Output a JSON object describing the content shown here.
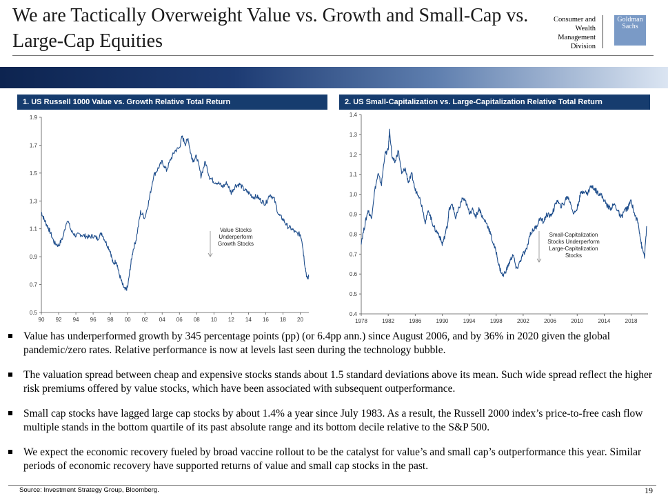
{
  "header": {
    "title": "We are Tactically Overweight Value vs. Growth and Small-Cap vs. Large-Cap Equities",
    "division": "Consumer and Wealth Management Division",
    "logo": "Goldman Sachs"
  },
  "charts": {
    "chart1_title": "1. US Russell 1000 Value vs. Growth Relative Total Return",
    "chart2_title": "2. US Small-Capitalization vs. Large-Capitalization Relative Total Return"
  },
  "chart_data": [
    {
      "type": "line",
      "title": "1. US Russell 1000 Value vs. Growth Relative Total Return",
      "x_tick_labels": [
        "90",
        "92",
        "94",
        "96",
        "98",
        "00",
        "02",
        "04",
        "06",
        "08",
        "10",
        "12",
        "14",
        "16",
        "18",
        "20"
      ],
      "y_ticks": [
        0.5,
        0.7,
        0.9,
        1.1,
        1.3,
        1.5,
        1.7,
        1.9
      ],
      "ylim": [
        0.5,
        1.9
      ],
      "xlim": [
        1990,
        2021
      ],
      "annotation": "Value Stocks Underperform Growth Stocks",
      "annotation_lines": [
        "Value Stocks",
        "Underperform",
        "Growth Stocks"
      ],
      "line_color": "#1f4e8c",
      "series": [
        {
          "x": [
            1990,
            1990.3,
            1990.7,
            1991,
            1991.5,
            1992,
            1992.5,
            1993,
            1993.5,
            1994,
            1994.5,
            1995,
            1995.5,
            1996,
            1996.5,
            1997,
            1997.5,
            1998,
            1998.3,
            1998.7,
            1999,
            1999.4,
            1999.7,
            2000,
            2000.3,
            2000.6,
            2001,
            2001.5,
            2002,
            2002.5,
            2003,
            2003.5,
            2004,
            2004.5,
            2005,
            2005.5,
            2006,
            2006.3,
            2006.7,
            2007,
            2007.3,
            2007.6,
            2008,
            2008.5,
            2009,
            2009.5,
            2010,
            2010.5,
            2011,
            2011.5,
            2012,
            2012.5,
            2013,
            2013.5,
            2014,
            2014.5,
            2015,
            2015.5,
            2016,
            2016.5,
            2017,
            2017.5,
            2018,
            2018.5,
            2019,
            2019.5,
            2020,
            2020.2,
            2020.5,
            2020.8,
            2021
          ],
          "y": [
            1.22,
            1.17,
            1.12,
            1.08,
            1.0,
            0.98,
            1.04,
            1.17,
            1.08,
            1.05,
            1.06,
            1.05,
            1.04,
            1.05,
            1.03,
            1.07,
            1.0,
            0.94,
            0.85,
            0.87,
            0.78,
            0.7,
            0.66,
            0.68,
            0.82,
            0.94,
            1.03,
            1.22,
            1.18,
            1.31,
            1.48,
            1.53,
            1.58,
            1.52,
            1.6,
            1.66,
            1.68,
            1.76,
            1.71,
            1.75,
            1.64,
            1.59,
            1.62,
            1.48,
            1.58,
            1.47,
            1.44,
            1.43,
            1.4,
            1.43,
            1.36,
            1.41,
            1.42,
            1.38,
            1.36,
            1.33,
            1.33,
            1.3,
            1.28,
            1.35,
            1.31,
            1.2,
            1.17,
            1.12,
            1.1,
            1.07,
            1.06,
            1.02,
            0.86,
            0.74,
            0.76
          ]
        }
      ]
    },
    {
      "type": "line",
      "title": "2. US Small-Capitalization vs. Large-Capitalization Relative Total Return",
      "x_tick_labels": [
        "1978",
        "1982",
        "1986",
        "1990",
        "1994",
        "1998",
        "2002",
        "2006",
        "2010",
        "2014",
        "2018"
      ],
      "y_ticks": [
        0.4,
        0.5,
        0.6,
        0.7,
        0.8,
        0.9,
        1.0,
        1.1,
        1.2,
        1.3,
        1.4
      ],
      "ylim": [
        0.4,
        1.4
      ],
      "xlim": [
        1978,
        2020.5
      ],
      "annotation": "Small-Capitalization Stocks Underperform Large-Capitalization Stocks",
      "annotation_lines": [
        "Small-Capitalization",
        "Stocks Underperform",
        "Large-Capitalization",
        "Stocks"
      ],
      "line_color": "#1f4e8c",
      "series": [
        {
          "x": [
            1978,
            1978.5,
            1979,
            1979.5,
            1980,
            1980.5,
            1981,
            1981.5,
            1982,
            1982.2,
            1982.6,
            1983,
            1983.5,
            1984,
            1984.5,
            1985,
            1985.5,
            1986,
            1986.5,
            1987,
            1987.5,
            1988,
            1988.5,
            1989,
            1989.5,
            1990,
            1990.3,
            1990.8,
            1991,
            1991.5,
            1992,
            1992.5,
            1993,
            1993.5,
            1994,
            1994.5,
            1995,
            1995.5,
            1996,
            1996.5,
            1997,
            1997.5,
            1998,
            1998.5,
            1999,
            1999.5,
            2000,
            2000.5,
            2001,
            2001.5,
            2002,
            2002.5,
            2003,
            2003.5,
            2004,
            2004.5,
            2005,
            2005.5,
            2006,
            2006.5,
            2007,
            2007.5,
            2008,
            2008.5,
            2009,
            2009.5,
            2010,
            2010.5,
            2011,
            2011.5,
            2012,
            2012.5,
            2013,
            2013.5,
            2014,
            2014.5,
            2015,
            2015.5,
            2016,
            2016.5,
            2017,
            2017.5,
            2018,
            2018.5,
            2019,
            2019.3,
            2019.6,
            2020,
            2020.3
          ],
          "y": [
            0.76,
            0.84,
            0.92,
            0.88,
            1.02,
            1.1,
            1.05,
            1.2,
            1.22,
            1.32,
            1.18,
            1.16,
            1.22,
            1.1,
            1.13,
            1.06,
            1.1,
            1.02,
            1.0,
            0.94,
            0.86,
            0.92,
            0.86,
            0.82,
            0.8,
            0.75,
            0.78,
            0.85,
            0.92,
            0.95,
            0.88,
            0.93,
            0.98,
            0.96,
            0.91,
            0.92,
            0.89,
            0.93,
            0.88,
            0.86,
            0.82,
            0.76,
            0.71,
            0.63,
            0.59,
            0.62,
            0.66,
            0.7,
            0.62,
            0.66,
            0.7,
            0.72,
            0.8,
            0.82,
            0.84,
            0.88,
            0.86,
            0.9,
            0.89,
            0.92,
            0.97,
            0.94,
            0.95,
            0.99,
            0.96,
            0.9,
            0.93,
            1.0,
            1.02,
            1.0,
            1.04,
            1.03,
            1.01,
            1.0,
            0.97,
            0.94,
            0.93,
            0.95,
            0.92,
            0.88,
            0.92,
            0.93,
            0.97,
            0.9,
            0.86,
            0.8,
            0.73,
            0.69,
            0.84
          ]
        }
      ]
    }
  ],
  "bullets": [
    "Value has underperformed growth by 345 percentage points (pp) (or 6.4pp ann.) since August 2006, and by 36% in 2020 given the global pandemic/zero rates. Relative performance is now at levels last seen during the technology bubble.",
    "The valuation spread between cheap and expensive stocks stands about 1.5 standard deviations above its mean. Such wide spread reflect the higher risk premiums offered by value stocks, which have been associated with subsequent outperformance.",
    "Small cap stocks have lagged large cap stocks by about 1.4% a year since July 1983. As a result, the Russell 2000 index’s price-to-free cash flow multiple stands in the bottom quartile of its past absolute range and its bottom decile relative to the S&P 500.",
    "We expect the economic recovery fueled by broad vaccine rollout to be the catalyst for value’s and small cap’s outperformance this year. Similar periods of economic recovery have supported returns of value and small cap stocks in the past."
  ],
  "footer": {
    "source": "Source: Investment Strategy Group, Bloomberg.",
    "page": "19"
  }
}
